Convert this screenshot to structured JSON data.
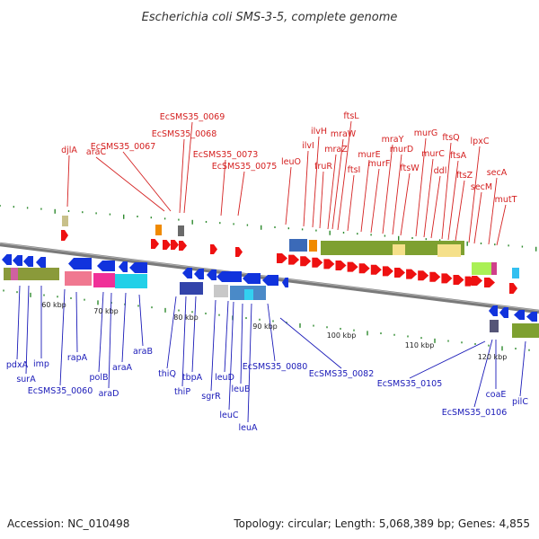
{
  "title": "Escherichia coli SMS-3-5, complete genome",
  "accession": "Accession: NC_010498",
  "summary": "Topology: circular; Length: 5,068,389 bp; Genes: 4,855",
  "colors": {
    "top_label": "#d42020",
    "bottom_label": "#1a1ab8",
    "backbone": "#7a7a7a",
    "tick": "#2d8a2d",
    "forward_arrow": "#ee1111",
    "reverse_arrow": "#1133dd"
  },
  "scale": {
    "unit": "kbp",
    "tick_labels": [
      "60 kbp",
      "70 kbp",
      "80 kbp",
      "90 kbp",
      "100 kbp",
      "110 kbp",
      "120 kbp"
    ]
  },
  "top_labels": [
    "djlA",
    "araC",
    "EcSMS35_0067",
    "EcSMS35_0068",
    "EcSMS35_0069",
    "EcSMS35_0073",
    "EcSMS35_0075",
    "leuO",
    "ilvI",
    "ilvH",
    "fruR",
    "mraZ",
    "mraW",
    "ftsL",
    "ftsI",
    "murE",
    "murF",
    "mraY",
    "murD",
    "ftsW",
    "murG",
    "murC",
    "ddl",
    "ftsQ",
    "ftsA",
    "ftsZ",
    "lpxC",
    "secM",
    "secA",
    "mutT"
  ],
  "bottom_labels": [
    "pdxA",
    "surA",
    "imp",
    "EcSMS35_0060",
    "rapA",
    "polB",
    "araD",
    "araA",
    "araB",
    "thiQ",
    "thiP",
    "tbpA",
    "sgrR",
    "leuD",
    "leuC",
    "leuB",
    "leuA",
    "EcSMS35_0080",
    "EcSMS35_0082",
    "EcSMS35_0105",
    "EcSMS35_0106",
    "coaE",
    "pilC"
  ]
}
